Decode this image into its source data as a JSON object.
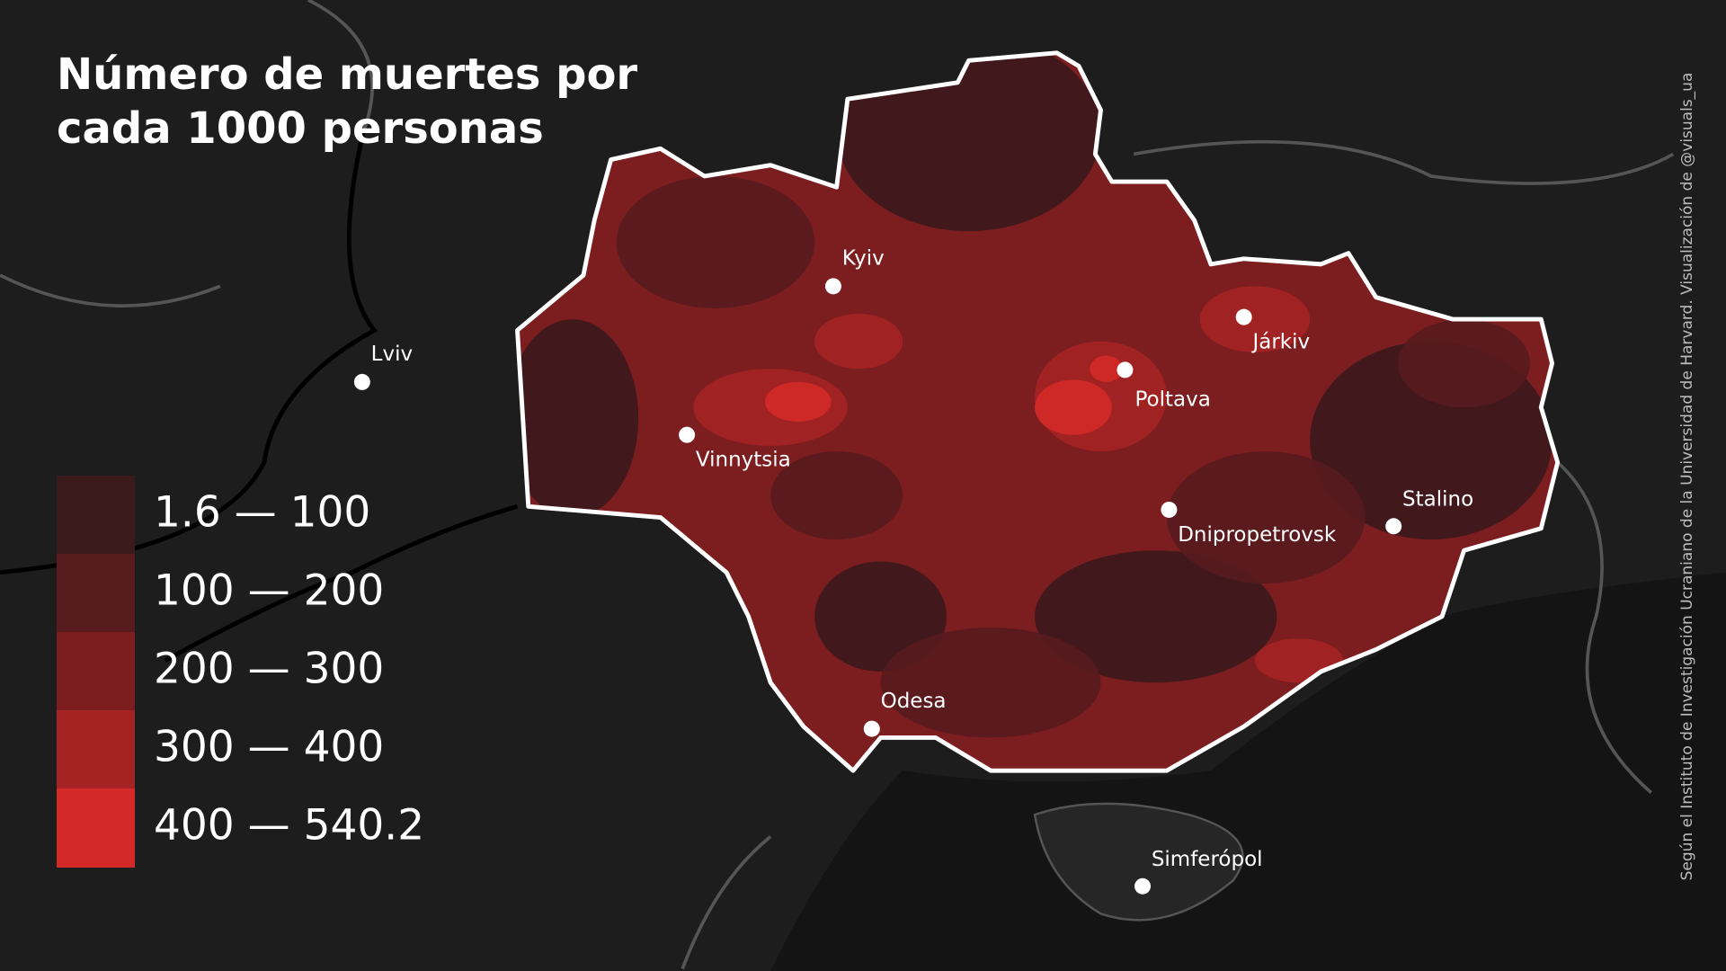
{
  "title_lines": [
    "Número de muertes por",
    "cada 1000 personas"
  ],
  "legend": [
    {
      "label": "1.6 — 100",
      "color": "#3b1a1c"
    },
    {
      "label": "100 — 200",
      "color": "#581b1e"
    },
    {
      "label": "200 — 300",
      "color": "#7c1d1f"
    },
    {
      "label": "300 — 400",
      "color": "#a52322"
    },
    {
      "label": "400 — 540.2",
      "color": "#d32a27"
    }
  ],
  "cities": [
    "Kyiv",
    "Lviv",
    "Vinnytsia",
    "Poltava",
    "Járkiv",
    "Dnipropetrovsk",
    "Stalino",
    "Odesa",
    "Simferópol"
  ],
  "credit": "Según el Instituto de Investigación Ucraniano de la Universidad de Harvard. Visualización de @visuals_ua"
}
